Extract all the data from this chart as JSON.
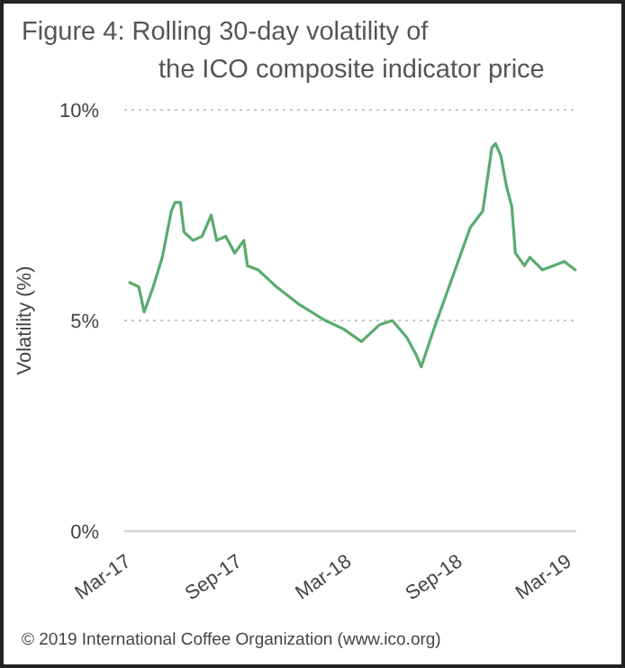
{
  "chart_data": {
    "type": "line",
    "title": "Figure 4: Rolling 30-day volatility of the ICO composite indicator price",
    "ylabel": "Volatility (%)",
    "annotations": [
      "© 2019 International Coffee Organization (www.ico.org)"
    ],
    "x": [
      "2017-03-10",
      "2017-03-25",
      "2017-04-03",
      "2017-04-18",
      "2017-05-03",
      "2017-05-18",
      "2017-05-24",
      "2017-06-02",
      "2017-06-08",
      "2017-06-23",
      "2017-07-08",
      "2017-07-23",
      "2017-08-01",
      "2017-08-16",
      "2017-08-31",
      "2017-09-15",
      "2017-09-21",
      "2017-10-09",
      "2017-11-08",
      "2017-12-14",
      "2018-01-28",
      "2018-02-27",
      "2018-03-29",
      "2018-04-28",
      "2018-05-19",
      "2018-06-12",
      "2018-06-27",
      "2018-07-06",
      "2018-07-27",
      "2018-08-26",
      "2018-09-25",
      "2018-10-16",
      "2018-10-31",
      "2018-11-06",
      "2018-11-15",
      "2018-11-24",
      "2018-12-03",
      "2018-12-09",
      "2018-12-24",
      "2019-01-02",
      "2019-01-23",
      "2019-02-28",
      "2019-03-18"
    ],
    "series": [
      {
        "color": "#5aab6e",
        "values": [
          5.9,
          5.8,
          5.2,
          5.8,
          6.5,
          7.6,
          7.8,
          7.8,
          7.1,
          6.9,
          7.0,
          7.5,
          6.9,
          7.0,
          6.6,
          6.9,
          6.3,
          6.2,
          5.8,
          5.4,
          5.0,
          4.8,
          4.5,
          4.9,
          5.0,
          4.6,
          4.2,
          3.9,
          4.8,
          6.0,
          7.2,
          7.6,
          9.1,
          9.2,
          8.9,
          8.2,
          7.7,
          6.6,
          6.3,
          6.5,
          6.2,
          6.4,
          6.2
        ]
      }
    ],
    "xlim": [
      "2017-03-01",
      "2019-03-20"
    ],
    "xticks": [
      {
        "value": "2017-03-01",
        "label": "Mar-17"
      },
      {
        "value": "2017-09-01",
        "label": "Sep-17"
      },
      {
        "value": "2018-03-01",
        "label": "Mar-18"
      },
      {
        "value": "2018-09-01",
        "label": "Sep-18"
      },
      {
        "value": "2019-03-01",
        "label": "Mar-19"
      }
    ],
    "ylim": [
      0,
      10
    ],
    "yticks": [
      {
        "value": 0,
        "label": "0%"
      },
      {
        "value": 5,
        "label": "5%"
      },
      {
        "value": 10,
        "label": "10%"
      }
    ],
    "grid": "y",
    "marker": "none",
    "line_style": "solid"
  }
}
